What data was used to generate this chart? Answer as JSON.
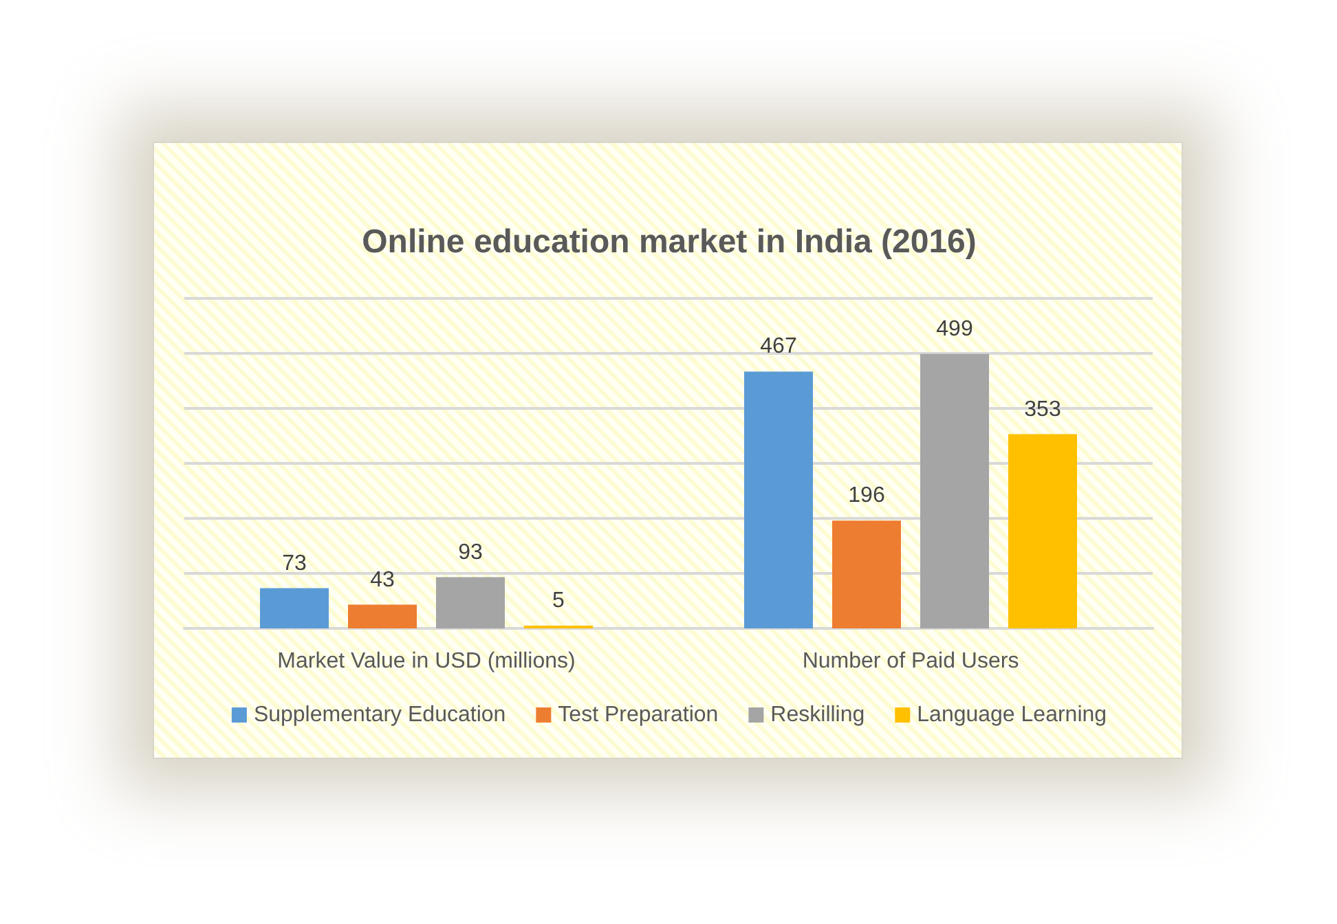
{
  "chart_data": {
    "type": "bar",
    "title": "Online education market in India (2016)",
    "categories": [
      "Market Value in USD (millions)",
      "Number of Paid Users"
    ],
    "series": [
      {
        "name": "Supplementary Education",
        "color": "#5b9bd5",
        "values": [
          73,
          467
        ]
      },
      {
        "name": "Test Preparation",
        "color": "#ed7d31",
        "values": [
          43,
          196
        ]
      },
      {
        "name": "Reskilling",
        "color": "#a5a5a5",
        "values": [
          93,
          499
        ]
      },
      {
        "name": "Language Learning",
        "color": "#ffc000",
        "values": [
          5,
          353
        ]
      }
    ],
    "ylim": [
      0,
      600
    ],
    "yticks": [
      {
        "value": 0,
        "label": null
      },
      {
        "value": 100,
        "label": null
      },
      {
        "value": 200,
        "label": null
      },
      {
        "value": 300,
        "label": null
      },
      {
        "value": 400,
        "label": null
      },
      {
        "value": 500,
        "label": null
      },
      {
        "value": 600,
        "label": null
      }
    ],
    "tick_labels": "x",
    "grid": "y",
    "legend": "bottom",
    "data_labels": true
  }
}
